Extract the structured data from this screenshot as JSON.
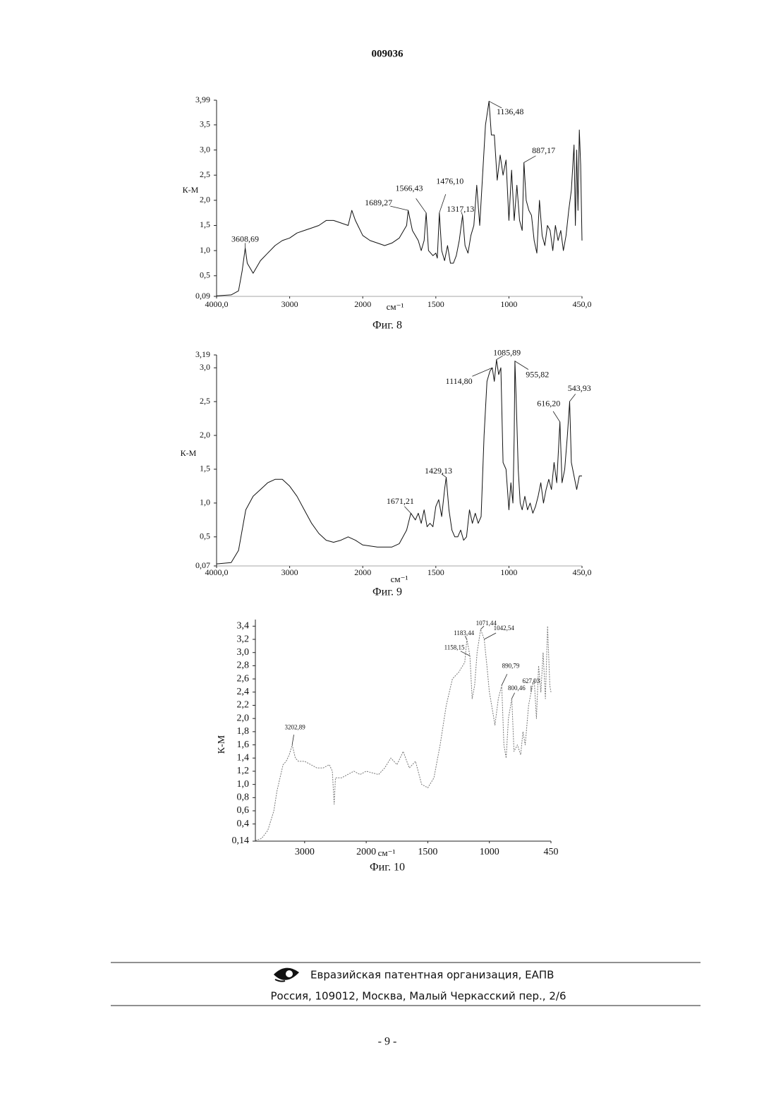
{
  "header": {
    "title": "009036"
  },
  "chart_data": [
    {
      "type": "line",
      "ylabel": "К-М",
      "xlabel": "см⁻¹",
      "caption": "Фиг. 8",
      "color": "#111",
      "xlim": [
        4000,
        450
      ],
      "ylim": [
        0.09,
        3.99
      ],
      "xticks": [
        {
          "value": 4000,
          "label": "4000,0"
        },
        3000,
        2000,
        1500,
        1000,
        {
          "value": 450,
          "label": "450,0"
        }
      ],
      "yticks": [
        {
          "value": 0.09,
          "label": "0,09"
        },
        {
          "value": 0.5,
          "label": "0,5"
        },
        {
          "value": 1.0,
          "label": "1,0"
        },
        {
          "value": 1.5,
          "label": "1,5"
        },
        {
          "value": 2.0,
          "label": "2,0"
        },
        {
          "value": 2.5,
          "label": "2,5"
        },
        {
          "value": 3.0,
          "label": "3,0"
        },
        {
          "value": 3.5,
          "label": "3,5"
        },
        {
          "value": 3.99,
          "label": "3,99"
        }
      ],
      "x": [
        4000,
        3800,
        3700,
        3650,
        3608,
        3580,
        3500,
        3400,
        3300,
        3200,
        3100,
        3000,
        2900,
        2800,
        2700,
        2600,
        2500,
        2400,
        2300,
        2200,
        2150,
        2100,
        2000,
        1950,
        1900,
        1850,
        1800,
        1750,
        1700,
        1689,
        1660,
        1620,
        1600,
        1580,
        1566,
        1550,
        1520,
        1500,
        1490,
        1476,
        1460,
        1440,
        1420,
        1400,
        1380,
        1360,
        1340,
        1317,
        1300,
        1280,
        1260,
        1240,
        1220,
        1200,
        1180,
        1160,
        1136,
        1120,
        1100,
        1080,
        1060,
        1040,
        1020,
        1000,
        980,
        960,
        940,
        920,
        900,
        887,
        870,
        850,
        830,
        810,
        790,
        770,
        750,
        730,
        710,
        690,
        670,
        650,
        630,
        610,
        590,
        570,
        550,
        530,
        510,
        500,
        490,
        480,
        470,
        460,
        450
      ],
      "values": [
        0.1,
        0.12,
        0.2,
        0.6,
        1.05,
        0.75,
        0.55,
        0.8,
        0.95,
        1.1,
        1.2,
        1.25,
        1.35,
        1.4,
        1.45,
        1.5,
        1.6,
        1.6,
        1.55,
        1.5,
        1.8,
        1.6,
        1.3,
        1.2,
        1.15,
        1.1,
        1.15,
        1.25,
        1.5,
        1.8,
        1.4,
        1.2,
        1.0,
        1.2,
        1.75,
        1.0,
        0.9,
        0.95,
        0.85,
        1.75,
        1.0,
        0.8,
        1.1,
        0.75,
        0.75,
        0.9,
        1.2,
        1.7,
        1.1,
        0.95,
        1.3,
        1.5,
        2.3,
        1.5,
        2.5,
        3.5,
        3.97,
        3.3,
        3.3,
        2.4,
        2.9,
        2.5,
        2.8,
        1.6,
        2.6,
        1.6,
        2.3,
        1.6,
        1.4,
        2.75,
        2.0,
        1.8,
        1.7,
        1.2,
        0.95,
        2.0,
        1.3,
        1.1,
        1.5,
        1.4,
        1.0,
        1.5,
        1.2,
        1.4,
        1.0,
        1.3,
        1.8,
        2.2,
        3.1,
        1.5,
        3.0,
        1.8,
        3.4,
        2.7,
        1.2
      ],
      "annotations": [
        {
          "label": "3608,69",
          "x": 3608.69,
          "y": 1.05
        },
        {
          "label": "1689,27",
          "x": 1689.27,
          "y": 1.8
        },
        {
          "label": "1566,43",
          "x": 1566.43,
          "y": 1.75
        },
        {
          "label": "1476,10",
          "x": 1476.1,
          "y": 1.75
        },
        {
          "label": "1317,13",
          "x": 1317.13,
          "y": 1.7
        },
        {
          "label": "1136,48",
          "x": 1136.48,
          "y": 3.97
        },
        {
          "label": "887,17",
          "x": 887.17,
          "y": 2.75
        }
      ]
    },
    {
      "type": "line",
      "ylabel": "К-М",
      "xlabel": "см⁻¹",
      "caption": "Фиг. 9",
      "color": "#111",
      "xlim": [
        4000,
        450
      ],
      "ylim": [
        0.07,
        3.19
      ],
      "xticks": [
        {
          "value": 4000,
          "label": "4000,0"
        },
        3000,
        2000,
        1500,
        1000,
        {
          "value": 450,
          "label": "450,0"
        }
      ],
      "yticks": [
        {
          "value": 0.07,
          "label": "0,07"
        },
        {
          "value": 0.5,
          "label": "0,5"
        },
        {
          "value": 1.0,
          "label": "1,0"
        },
        {
          "value": 1.5,
          "label": "1,5"
        },
        {
          "value": 2.0,
          "label": "2,0"
        },
        {
          "value": 2.5,
          "label": "2,5"
        },
        {
          "value": 3.0,
          "label": "3,0"
        },
        {
          "value": 3.19,
          "label": "3,19"
        }
      ],
      "x": [
        4000,
        3800,
        3700,
        3600,
        3500,
        3400,
        3300,
        3200,
        3100,
        3000,
        2900,
        2800,
        2700,
        2600,
        2500,
        2400,
        2300,
        2200,
        2100,
        2000,
        1900,
        1800,
        1750,
        1700,
        1671,
        1640,
        1620,
        1600,
        1580,
        1560,
        1540,
        1520,
        1500,
        1480,
        1460,
        1440,
        1429,
        1410,
        1390,
        1370,
        1350,
        1330,
        1310,
        1290,
        1270,
        1250,
        1230,
        1210,
        1190,
        1170,
        1150,
        1130,
        1114,
        1100,
        1085,
        1070,
        1055,
        1040,
        1020,
        1000,
        985,
        970,
        960,
        955,
        945,
        930,
        915,
        900,
        880,
        860,
        840,
        820,
        800,
        780,
        760,
        740,
        720,
        700,
        680,
        660,
        640,
        616,
        600,
        580,
        560,
        543,
        530,
        510,
        490,
        470,
        450
      ],
      "values": [
        0.1,
        0.12,
        0.3,
        0.9,
        1.1,
        1.2,
        1.3,
        1.35,
        1.35,
        1.25,
        1.1,
        0.9,
        0.7,
        0.55,
        0.45,
        0.42,
        0.45,
        0.5,
        0.45,
        0.38,
        0.35,
        0.35,
        0.4,
        0.6,
        0.85,
        0.75,
        0.85,
        0.7,
        0.9,
        0.65,
        0.7,
        0.65,
        0.95,
        1.05,
        0.8,
        1.2,
        1.38,
        0.9,
        0.6,
        0.5,
        0.5,
        0.6,
        0.45,
        0.5,
        0.9,
        0.7,
        0.85,
        0.7,
        0.8,
        2.0,
        2.8,
        2.95,
        3.0,
        2.8,
        3.12,
        2.9,
        3.0,
        1.6,
        1.5,
        0.9,
        1.3,
        1.0,
        2.0,
        3.1,
        2.5,
        1.5,
        1.0,
        0.9,
        1.1,
        0.9,
        1.0,
        0.85,
        0.95,
        1.1,
        1.3,
        1.0,
        1.2,
        1.35,
        1.2,
        1.6,
        1.3,
        2.2,
        1.3,
        1.5,
        2.0,
        2.5,
        1.6,
        1.4,
        1.2,
        1.4,
        1.4
      ],
      "annotations": [
        {
          "label": "1671,21",
          "x": 1671.21,
          "y": 0.85
        },
        {
          "label": "1429,13",
          "x": 1429.13,
          "y": 1.38
        },
        {
          "label": "1114,80",
          "x": 1114.8,
          "y": 3.0
        },
        {
          "label": "1085,89",
          "x": 1085.89,
          "y": 3.12
        },
        {
          "label": "955,82",
          "x": 955.82,
          "y": 3.1
        },
        {
          "label": "616,20",
          "x": 616.2,
          "y": 2.2
        },
        {
          "label": "543,93",
          "x": 543.93,
          "y": 2.5
        }
      ]
    },
    {
      "type": "line",
      "ylabel": "К-М",
      "xlabel": "см⁻¹",
      "caption": "Фиг. 10",
      "color": "#777",
      "xlim": [
        3800,
        450
      ],
      "ylim": [
        0.14,
        3.5
      ],
      "xticks": [
        3000,
        2000,
        1500,
        1000,
        450
      ],
      "yticks": [
        {
          "value": 0.14,
          "label": "0,14"
        },
        {
          "value": 0.4,
          "label": "0,4"
        },
        {
          "value": 0.6,
          "label": "0,6"
        },
        {
          "value": 0.8,
          "label": "0,8"
        },
        {
          "value": 1.0,
          "label": "1,0"
        },
        {
          "value": 1.2,
          "label": "1,2"
        },
        {
          "value": 1.4,
          "label": "1,4"
        },
        {
          "value": 1.6,
          "label": "1,6"
        },
        {
          "value": 1.8,
          "label": "1,8"
        },
        {
          "value": 2.0,
          "label": "2,0"
        },
        {
          "value": 2.2,
          "label": "2,2"
        },
        {
          "value": 2.4,
          "label": "2,4"
        },
        {
          "value": 2.6,
          "label": "2,6"
        },
        {
          "value": 2.8,
          "label": "2,8"
        },
        {
          "value": 3.0,
          "label": "3,0"
        },
        {
          "value": 3.2,
          "label": "3,2"
        },
        {
          "value": 3.4,
          "label": "3,4"
        }
      ],
      "x": [
        3800,
        3700,
        3600,
        3500,
        3450,
        3400,
        3350,
        3300,
        3250,
        3202,
        3150,
        3100,
        3000,
        2900,
        2800,
        2700,
        2600,
        2550,
        2520,
        2500,
        2400,
        2300,
        2200,
        2100,
        2000,
        1900,
        1850,
        1800,
        1750,
        1700,
        1650,
        1600,
        1550,
        1500,
        1450,
        1400,
        1350,
        1300,
        1250,
        1200,
        1183,
        1158,
        1140,
        1120,
        1100,
        1071,
        1042,
        1020,
        1000,
        980,
        950,
        920,
        890,
        870,
        850,
        830,
        800,
        780,
        750,
        720,
        700,
        680,
        650,
        627,
        600,
        580,
        560,
        540,
        520,
        500,
        480,
        460,
        450
      ],
      "values": [
        0.15,
        0.18,
        0.3,
        0.6,
        0.9,
        1.1,
        1.3,
        1.35,
        1.45,
        1.6,
        1.4,
        1.35,
        1.35,
        1.3,
        1.25,
        1.25,
        1.3,
        1.2,
        0.7,
        1.1,
        1.1,
        1.15,
        1.2,
        1.15,
        1.2,
        1.15,
        1.25,
        1.4,
        1.3,
        1.5,
        1.25,
        1.35,
        1.0,
        0.95,
        1.1,
        1.6,
        2.2,
        2.6,
        2.7,
        2.85,
        3.2,
        2.95,
        2.3,
        2.5,
        3.0,
        3.35,
        3.2,
        2.8,
        2.4,
        2.2,
        1.9,
        2.3,
        2.5,
        1.6,
        1.4,
        2.0,
        2.3,
        1.5,
        1.6,
        1.45,
        1.8,
        1.6,
        2.2,
        2.4,
        2.6,
        2.0,
        2.8,
        2.4,
        3.0,
        2.3,
        3.4,
        2.5,
        2.4
      ],
      "annotations": [
        {
          "label": "3202,89",
          "x": 3202.89,
          "y": 1.6
        },
        {
          "label": "1183,44",
          "x": 1183.44,
          "y": 3.2
        },
        {
          "label": "1158,15",
          "x": 1158.15,
          "y": 2.95
        },
        {
          "label": "1071,44",
          "x": 1071.44,
          "y": 3.35
        },
        {
          "label": "1042,54",
          "x": 1042.54,
          "y": 3.2
        },
        {
          "label": "890,79",
          "x": 890.79,
          "y": 2.5
        },
        {
          "label": "800,46",
          "x": 800.46,
          "y": 2.3
        },
        {
          "label": "627,03",
          "x": 627.03,
          "y": 2.4
        }
      ]
    }
  ],
  "footer": {
    "organization": "Евразийская патентная организация, ЕАПВ",
    "address": "Россия, 109012, Москва, Малый Черкасский пер., 2/6"
  },
  "page_number": "- 9 -"
}
